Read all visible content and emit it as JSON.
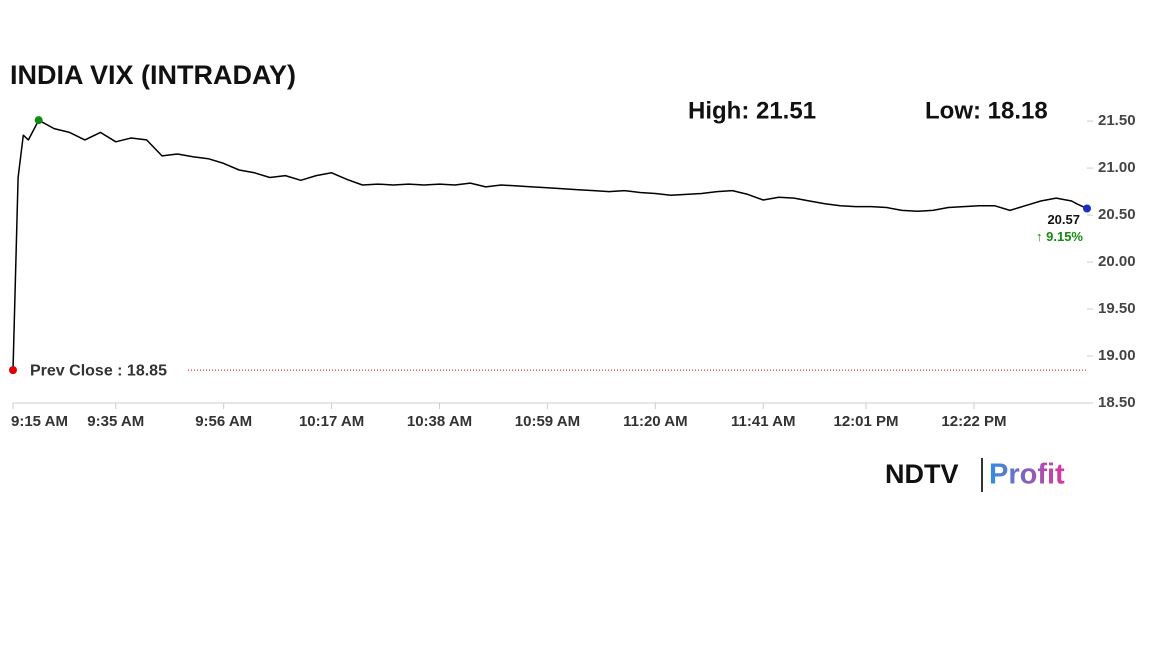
{
  "chart_data": {
    "type": "line",
    "title": "INDIA VIX (INTRADAY)",
    "high_label": "High: 21.51",
    "low_label": "Low: 18.18",
    "color": "#000000",
    "x": [
      "9:15 AM",
      "9:16 AM",
      "9:17 AM",
      "9:18 AM",
      "9:20 AM",
      "9:23 AM",
      "9:26 AM",
      "9:29 AM",
      "9:32 AM",
      "9:35 AM",
      "9:38 AM",
      "9:41 AM",
      "9:44 AM",
      "9:47 AM",
      "9:50 AM",
      "9:53 AM",
      "9:56 AM",
      "9:59 AM",
      "10:02 AM",
      "10:05 AM",
      "10:08 AM",
      "10:11 AM",
      "10:14 AM",
      "10:17 AM",
      "10:20 AM",
      "10:23 AM",
      "10:26 AM",
      "10:29 AM",
      "10:32 AM",
      "10:35 AM",
      "10:38 AM",
      "10:41 AM",
      "10:44 AM",
      "10:47 AM",
      "10:50 AM",
      "10:53 AM",
      "10:56 AM",
      "10:59 AM",
      "11:02 AM",
      "11:05 AM",
      "11:08 AM",
      "11:11 AM",
      "11:14 AM",
      "11:17 AM",
      "11:20 AM",
      "11:23 AM",
      "11:26 AM",
      "11:29 AM",
      "11:32 AM",
      "11:35 AM",
      "11:38 AM",
      "11:41 AM",
      "11:44 AM",
      "11:47 AM",
      "11:50 AM",
      "11:53 AM",
      "11:56 AM",
      "11:59 AM",
      "12:02 PM",
      "12:05 PM",
      "12:08 PM",
      "12:11 PM",
      "12:14 PM",
      "12:17 PM",
      "12:20 PM",
      "12:23 PM",
      "12:26 PM",
      "12:29 PM",
      "12:32 PM",
      "12:35 PM",
      "12:38 PM",
      "12:41 PM",
      "12:42 PM",
      "12:44 PM"
    ],
    "values": [
      18.85,
      20.9,
      21.35,
      21.3,
      21.51,
      21.42,
      21.38,
      21.3,
      21.38,
      21.28,
      21.32,
      21.3,
      21.13,
      21.15,
      21.12,
      21.1,
      21.05,
      20.98,
      20.95,
      20.9,
      20.92,
      20.87,
      20.92,
      20.95,
      20.88,
      20.82,
      20.83,
      20.82,
      20.83,
      20.82,
      20.83,
      20.82,
      20.84,
      20.8,
      20.82,
      20.81,
      20.8,
      20.79,
      20.78,
      20.77,
      20.76,
      20.75,
      20.76,
      20.74,
      20.73,
      20.71,
      20.72,
      20.73,
      20.75,
      20.76,
      20.72,
      20.66,
      20.69,
      20.68,
      20.65,
      20.62,
      20.6,
      20.59,
      20.59,
      20.58,
      20.55,
      20.54,
      20.55,
      20.58,
      20.59,
      20.6,
      20.6,
      20.55,
      20.6,
      20.65,
      20.68,
      20.65,
      20.62,
      20.57
    ],
    "xticks": [
      "9:15 AM",
      "9:35 AM",
      "9:56 AM",
      "10:17 AM",
      "10:38 AM",
      "10:59 AM",
      "11:20 AM",
      "11:41 AM",
      "12:01 PM",
      "12:22 PM"
    ],
    "ylim": [
      18.5,
      21.65
    ],
    "yticks": [
      {
        "value": 18.5,
        "label": "18.50"
      },
      {
        "value": 19,
        "label": "19.00"
      },
      {
        "value": 19.5,
        "label": "19.50"
      },
      {
        "value": 20,
        "label": "20.00"
      },
      {
        "value": 20.5,
        "label": "20.50"
      },
      {
        "value": 21,
        "label": "21.00"
      },
      {
        "value": 21.5,
        "label": "21.50"
      }
    ],
    "reference_line": {
      "value": 18.85,
      "label": "Prev Close : 18.85",
      "color": "#cc0000"
    },
    "last_label": "20.57",
    "change_label": "↑ 9.15%",
    "change_color": "#138a13",
    "marker_colors": {
      "first": "#e00000",
      "high": "#138a13",
      "last": "#1a2fc0"
    },
    "brand": [
      "NDTV",
      "Profit"
    ]
  }
}
